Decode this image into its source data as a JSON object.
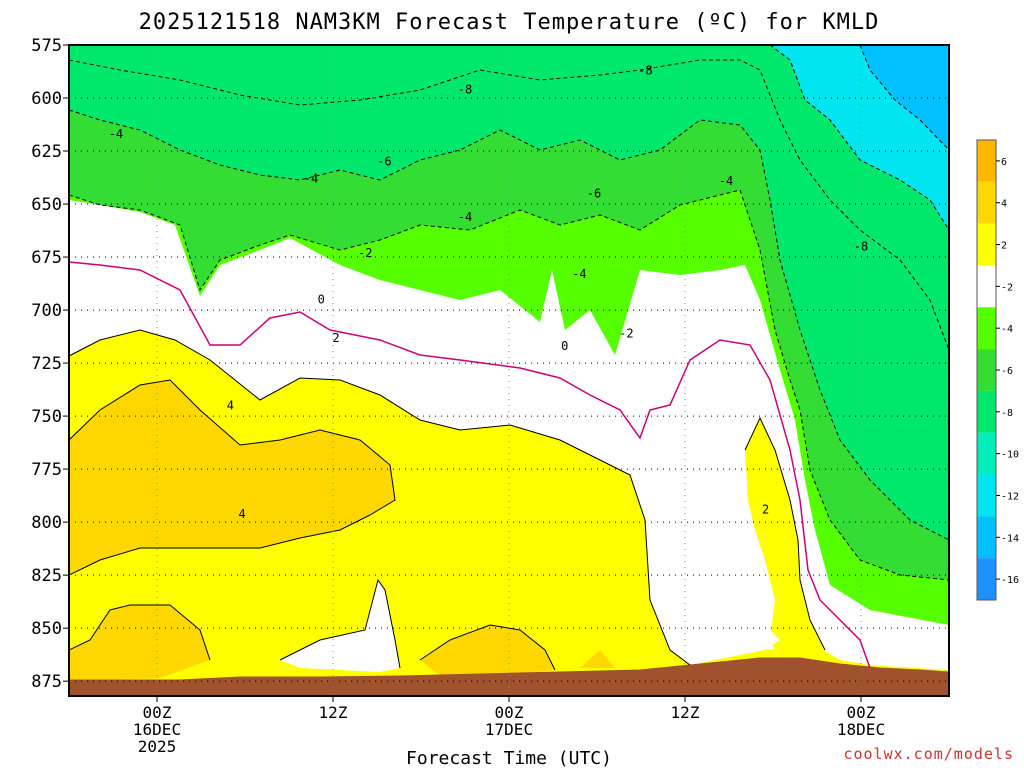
{
  "chart_data": {
    "type": "contour",
    "title": "2025121518 NAM3KM Forecast Temperature (ºC) for KMLD",
    "xlabel": "Forecast Time (UTC)",
    "ylabel": "",
    "credit": "coolwx.com/models",
    "x_ticks": [
      {
        "hour": 6,
        "lines": [
          "00Z",
          "16DEC",
          "2025"
        ]
      },
      {
        "hour": 18,
        "lines": [
          "12Z"
        ]
      },
      {
        "hour": 30,
        "lines": [
          "00Z",
          "17DEC"
        ]
      },
      {
        "hour": 42,
        "lines": [
          "12Z"
        ]
      },
      {
        "hour": 54,
        "lines": [
          "00Z",
          "18DEC"
        ]
      }
    ],
    "xlim": [
      0,
      60
    ],
    "y_ticks": [
      575,
      600,
      625,
      650,
      675,
      700,
      725,
      750,
      775,
      800,
      825,
      850,
      875
    ],
    "ylim": [
      575,
      882
    ],
    "colorbar": {
      "labels": [
        "6",
        "4",
        "2",
        "-2",
        "-4",
        "-6",
        "-8",
        "-10",
        "-12",
        "-14",
        "-16"
      ],
      "colors": [
        "#ffb700",
        "#ffd700",
        "#ffff00",
        "#ffffff",
        "#55ff00",
        "#33dd33",
        "#00e86c",
        "#00eebb",
        "#00e5f0",
        "#00c0ff",
        "#1e90ff"
      ]
    },
    "contour_labels": [
      {
        "t": "-8",
        "hour": 27,
        "p": 597
      },
      {
        "t": "-8",
        "hour": 39.3,
        "p": 588
      },
      {
        "t": "-8",
        "hour": 54,
        "p": 671
      },
      {
        "t": "-6",
        "hour": 21.5,
        "p": 631
      },
      {
        "t": "-6",
        "hour": 35.8,
        "p": 646
      },
      {
        "t": "-4",
        "hour": 3.2,
        "p": 618
      },
      {
        "t": "-4",
        "hour": 16.5,
        "p": 639
      },
      {
        "t": "-4",
        "hour": 27,
        "p": 657
      },
      {
        "t": "-4",
        "hour": 34.8,
        "p": 684
      },
      {
        "t": "-4",
        "hour": 44.8,
        "p": 640
      },
      {
        "t": "-2",
        "hour": 20.2,
        "p": 674
      },
      {
        "t": "-2",
        "hour": 38,
        "p": 712
      },
      {
        "t": "0",
        "hour": 17.2,
        "p": 696
      },
      {
        "t": "0",
        "hour": 33.8,
        "p": 718
      },
      {
        "t": "2",
        "hour": 18.2,
        "p": 714
      },
      {
        "t": "2",
        "hour": 47.5,
        "p": 795
      },
      {
        "t": "4",
        "hour": 11,
        "p": 746
      },
      {
        "t": "4",
        "hour": 11.8,
        "p": 797
      }
    ]
  }
}
